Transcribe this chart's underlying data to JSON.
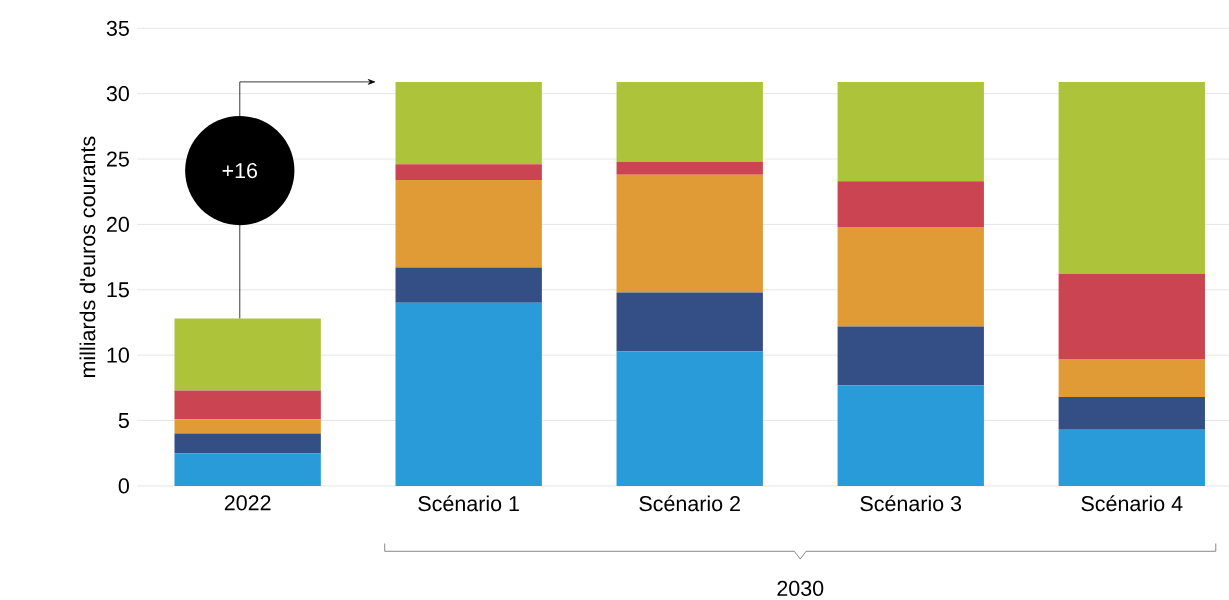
{
  "chart_data": {
    "type": "bar",
    "stacked": true,
    "ylabel": "milliards d'euros courants",
    "categories": [
      "2022",
      "Scénario 1",
      "Scénario 2",
      "Scénario 3",
      "Scénario 4"
    ],
    "series": [
      {
        "color": "#289bd8",
        "values": [
          2.5,
          14.0,
          10.3,
          7.7,
          4.3
        ]
      },
      {
        "color": "#344e86",
        "values": [
          1.5,
          2.7,
          4.5,
          4.5,
          2.5
        ]
      },
      {
        "color": "#e09b36",
        "values": [
          1.1,
          6.7,
          9.0,
          7.6,
          2.9
        ]
      },
      {
        "color": "#cb4451",
        "values": [
          2.2,
          1.2,
          1.0,
          3.5,
          6.5
        ]
      },
      {
        "color": "#adc43a",
        "values": [
          5.5,
          6.3,
          6.1,
          7.6,
          14.7
        ]
      }
    ],
    "ylim": [
      0,
      35
    ],
    "yticks": [
      0,
      5,
      10,
      15,
      20,
      25,
      30,
      35
    ],
    "grid": "y",
    "annotations": [
      "+16",
      "2030"
    ]
  }
}
